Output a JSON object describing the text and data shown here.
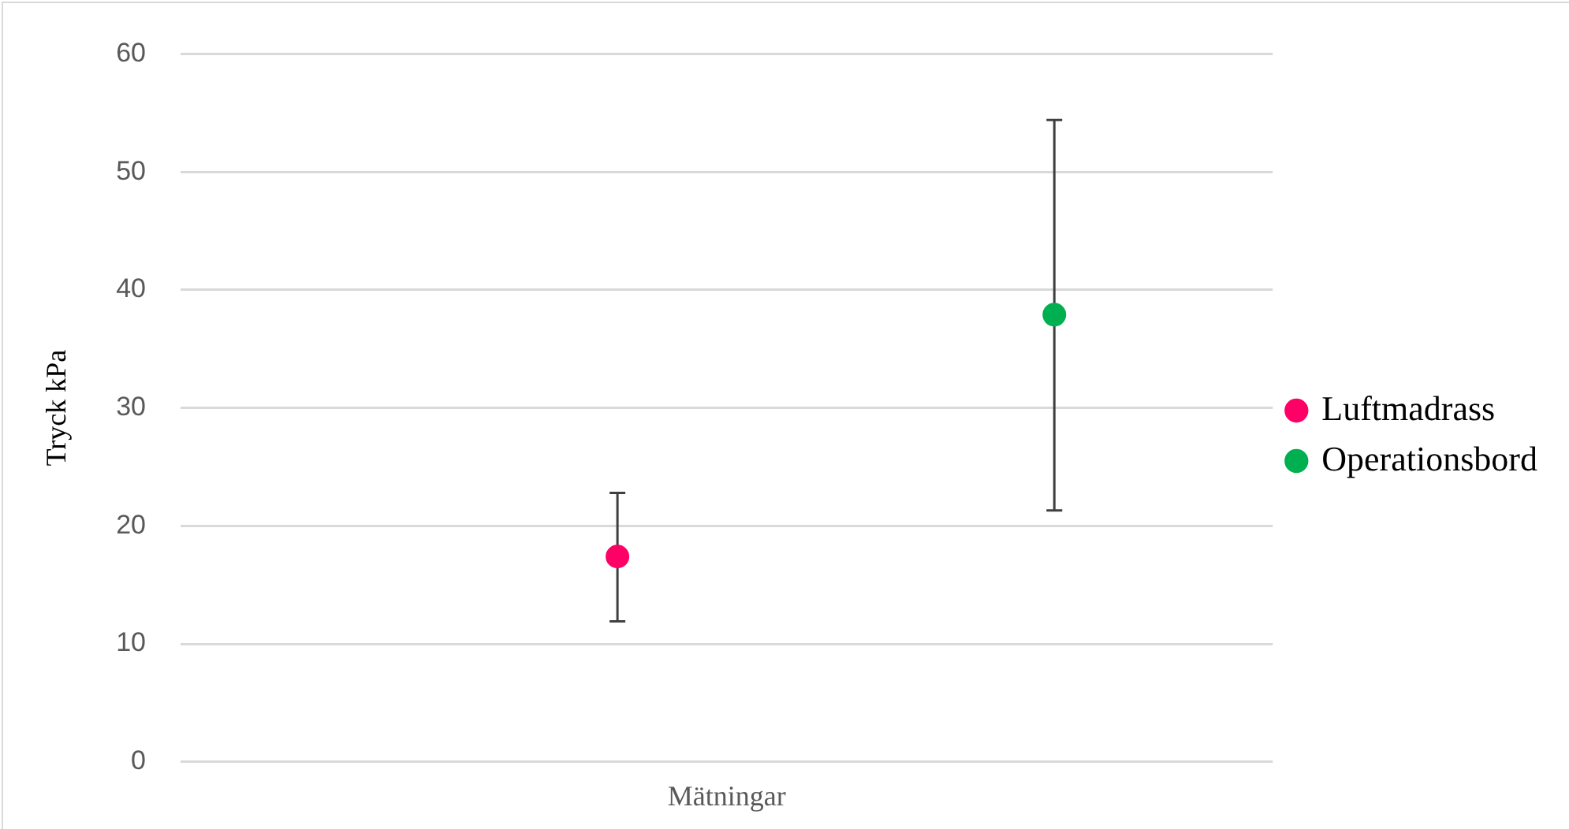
{
  "chart_data": {
    "type": "scatter",
    "xlabel": "Mätningar",
    "ylabel": "Tryck kPa",
    "categories": [
      null,
      null,
      null,
      null,
      null,
      null
    ],
    "ylim": [
      0,
      60
    ],
    "yticks": [
      0,
      10,
      20,
      30,
      40,
      50,
      60
    ],
    "tick_labels": "y",
    "grid": "y",
    "legend": "right",
    "marker": "circle",
    "series": [
      {
        "name": "Luftmadrass",
        "color": "#ff0066",
        "values": [
          null,
          null,
          17.4,
          null,
          null,
          null
        ],
        "errors": [
          null,
          null,
          [
            11.9,
            22.8
          ],
          null,
          null,
          null
        ]
      },
      {
        "name": "Operationsbord",
        "color": "#00b050",
        "values": [
          null,
          null,
          null,
          null,
          37.9,
          null
        ],
        "errors": [
          null,
          null,
          null,
          null,
          [
            21.3,
            54.4
          ],
          null
        ]
      }
    ]
  }
}
